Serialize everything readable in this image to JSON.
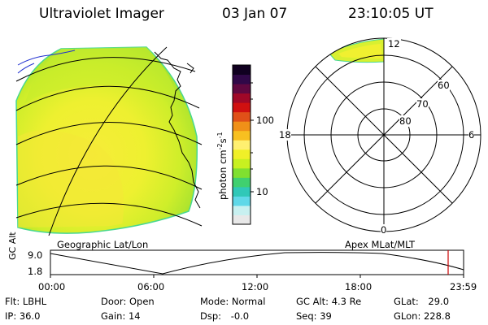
{
  "header": {
    "title": "Ultraviolet Imager",
    "date": "03 Jan 07",
    "time": "23:10:05 UT"
  },
  "colorbar": {
    "unit_label": "photon cm",
    "unit_exp1": "-2",
    "unit_mid": "s",
    "unit_exp2": "-1",
    "ticks": [
      "100",
      "10"
    ],
    "colors": [
      "#e8e8e8",
      "#c8f0f0",
      "#60d8e8",
      "#30c8b8",
      "#40d070",
      "#80e030",
      "#c8f020",
      "#f0f028",
      "#fff070",
      "#f8c020",
      "#f09018",
      "#e05018",
      "#d01010",
      "#a00828",
      "#600840",
      "#300848",
      "#100020"
    ]
  },
  "geo_panel": {
    "caption": "Geographic Lat/Lon"
  },
  "polar_panel": {
    "caption": "Apex MLat/MLT",
    "mlt_labels": {
      "top": "12",
      "left": "18",
      "right": "6",
      "bottom": "0"
    },
    "lat_labels": [
      "60",
      "70",
      "80"
    ]
  },
  "altitude_plot": {
    "ylabel": "GC Alt",
    "yticks": [
      "9.0",
      "1.8"
    ],
    "xticks": [
      "00:00",
      "06:00",
      "12:00",
      "18:00",
      "23:59"
    ],
    "current_time_marker_color": "#cc0000"
  },
  "status": {
    "filter": {
      "label": "Flt:",
      "value": "LBHL"
    },
    "ip": {
      "label": "IP:",
      "value": "36.0"
    },
    "door": {
      "label": "Door:",
      "value": "Open"
    },
    "gain": {
      "label": "Gain:",
      "value": "14"
    },
    "mode": {
      "label": "Mode:",
      "value": "Normal"
    },
    "dsp": {
      "label": "Dsp:",
      "value": "-0.0"
    },
    "gc_alt": {
      "label": "GC Alt:",
      "value": "4.3 Re"
    },
    "seq": {
      "label": "Seq:",
      "value": "39"
    },
    "glat": {
      "label": "GLat:",
      "value": "29.0"
    },
    "glon": {
      "label": "GLon:",
      "value": "228.8"
    }
  }
}
